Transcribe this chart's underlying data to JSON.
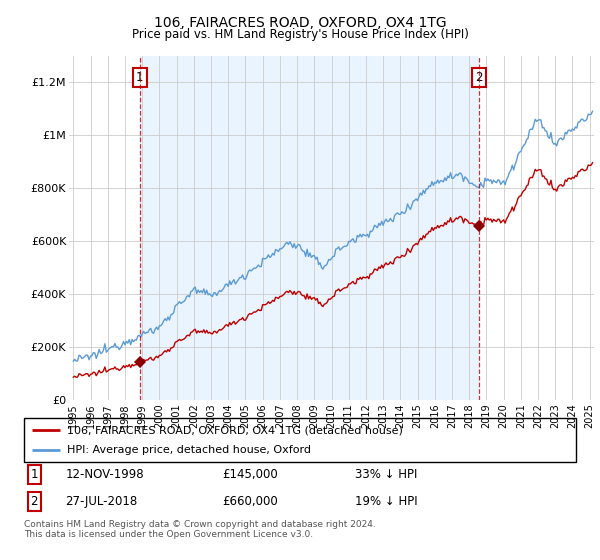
{
  "title": "106, FAIRACRES ROAD, OXFORD, OX4 1TG",
  "subtitle": "Price paid vs. HM Land Registry's House Price Index (HPI)",
  "legend_line1": "106, FAIRACRES ROAD, OXFORD, OX4 1TG (detached house)",
  "legend_line2": "HPI: Average price, detached house, Oxford",
  "footer": "Contains HM Land Registry data © Crown copyright and database right 2024.\nThis data is licensed under the Open Government Licence v3.0.",
  "hpi_color": "#5b9bd5",
  "price_color": "#c00000",
  "sale_marker_color": "#8b0000",
  "annotation_box_color": "#c00000",
  "shade_color": "#ddeeff",
  "ylim": [
    0,
    1300000
  ],
  "yticks": [
    0,
    200000,
    400000,
    600000,
    800000,
    1000000,
    1200000
  ],
  "ytick_labels": [
    "£0",
    "£200K",
    "£400K",
    "£600K",
    "£800K",
    "£1M",
    "£1.2M"
  ],
  "sale1_x": 1998.87,
  "sale1_y": 145000,
  "sale2_x": 2018.58,
  "sale2_y": 660000,
  "xmin": 1994.75,
  "xmax": 2025.25
}
